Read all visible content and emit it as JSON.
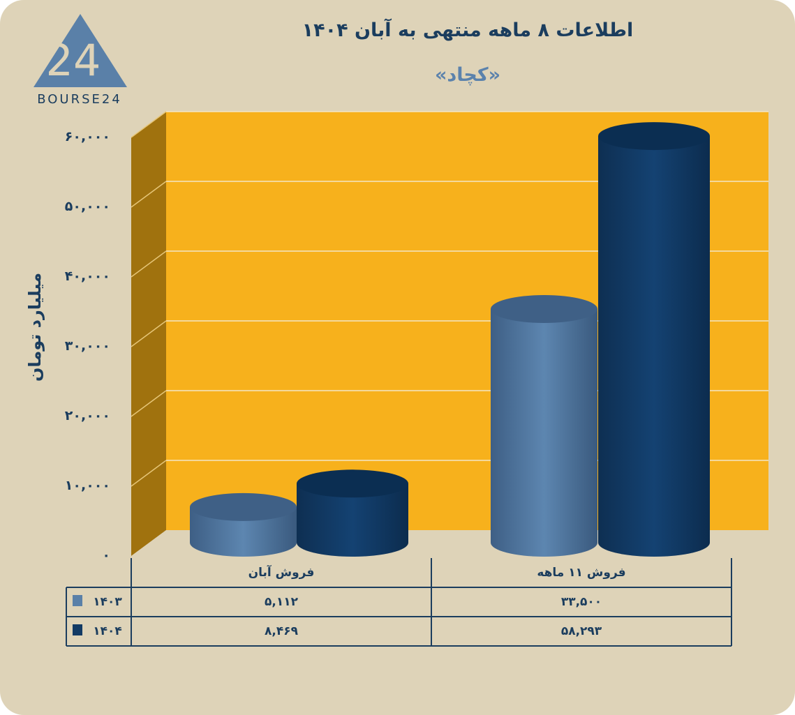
{
  "logo": {
    "text": "BOURSE24",
    "mark": "24"
  },
  "chart_data": {
    "type": "bar",
    "style": "3d-cylinder",
    "title": "اطلاعات ۸ ماهه منتهی به آبان ۱۴۰۴",
    "subtitle": "«کچاد»",
    "ylabel": "میلیارد تومان",
    "xlabel": "",
    "ylim": [
      0,
      60000
    ],
    "yticks": [
      "۰",
      "۱۰,۰۰۰",
      "۲۰,۰۰۰",
      "۳۰,۰۰۰",
      "۴۰,۰۰۰",
      "۵۰,۰۰۰",
      "۶۰,۰۰۰"
    ],
    "grid": true,
    "categories": [
      "فروش آبان",
      "فروش ۱۱ ماهه"
    ],
    "series": [
      {
        "name": "۱۴۰۳",
        "values": [
          5112,
          33500
        ],
        "labels": [
          "۵,۱۱۲",
          "۳۳,۵۰۰"
        ],
        "color": "#5a80a8"
      },
      {
        "name": "۱۴۰۴",
        "values": [
          8469,
          58293
        ],
        "labels": [
          "۸,۴۶۹",
          "۵۸,۲۹۳"
        ],
        "color": "#123a64"
      }
    ],
    "legend": "data-table-left",
    "colors": {
      "background": "#ded3b8",
      "wall": "#f7b11c",
      "side_wall": "#a0720e",
      "text": "#1b3d5e"
    }
  }
}
